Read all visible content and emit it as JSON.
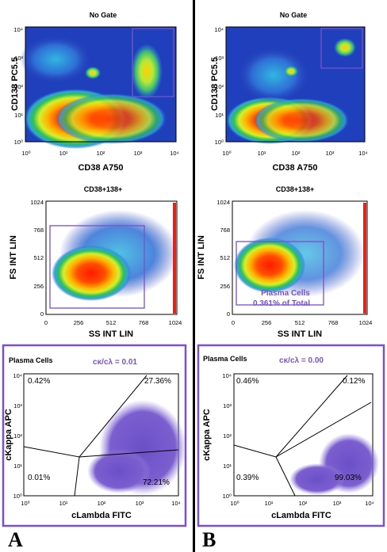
{
  "columns": [
    {
      "letter": "A",
      "row1": {
        "title": "No Gate",
        "ylabel": "CD138 PC5.5",
        "xlabel": "CD38 A750",
        "xticks": [
          "10⁰",
          "10¹",
          "10²",
          "10³",
          "10⁴"
        ],
        "yticks": [
          "10⁴",
          "10³",
          "10²",
          "10¹",
          "10⁰"
        ]
      },
      "row2": {
        "title": "CD38+138+",
        "ylabel": "FS INT LIN",
        "xlabel": "SS INT LIN",
        "yticks": [
          "1024",
          "768",
          "512",
          "256",
          "0"
        ],
        "xticks": [
          "0",
          "256",
          "512",
          "768",
          "1024"
        ],
        "gate_label": "",
        "gate_pct": ""
      },
      "row3": {
        "title": "Plasma Cells",
        "ratio": "cκ/cλ = 0.01",
        "ylabel": "cKappa APC",
        "xlabel": "cLambda FITC",
        "q_ul": "0.42%",
        "q_ur": "27.36%",
        "q_ll": "0.01%",
        "q_lr": "72.21%",
        "xticks": [
          "10⁰",
          "10¹",
          "10²",
          "10³",
          "10⁴"
        ],
        "yticks": [
          "10⁴",
          "10³",
          "10²",
          "10¹",
          "10⁰"
        ]
      }
    },
    {
      "letter": "B",
      "row1": {
        "title": "No Gate",
        "ylabel": "CD138 PC5.5",
        "xlabel": "CD38 A750",
        "xticks": [
          "10⁰",
          "10¹",
          "10²",
          "10³",
          "10⁴"
        ],
        "yticks": [
          "10⁴",
          "10³",
          "10²",
          "10¹",
          "10⁰"
        ]
      },
      "row2": {
        "title": "CD38+138+",
        "ylabel": "FS INT LIN",
        "xlabel": "SS INT LIN",
        "yticks": [
          "1024",
          "768",
          "512",
          "256",
          "0"
        ],
        "xticks": [
          "0",
          "256",
          "512",
          "768",
          "1024"
        ],
        "gate_label": "Plasma Cells",
        "gate_pct": "0.361% of Total"
      },
      "row3": {
        "title": "Plasma Cells",
        "ratio": "cκ/cλ = 0.00",
        "ylabel": "cKappa APC",
        "xlabel": "cLambda FITC",
        "q_ul": "0.46%",
        "q_ur": "0.12%",
        "q_ll": "0.39%",
        "q_lr": "99.03%",
        "xticks": [
          "10⁰",
          "10¹",
          "10²",
          "10³",
          "10⁴"
        ],
        "yticks": [
          "10⁴",
          "10³",
          "10²",
          "10¹",
          "10⁰"
        ]
      }
    }
  ]
}
